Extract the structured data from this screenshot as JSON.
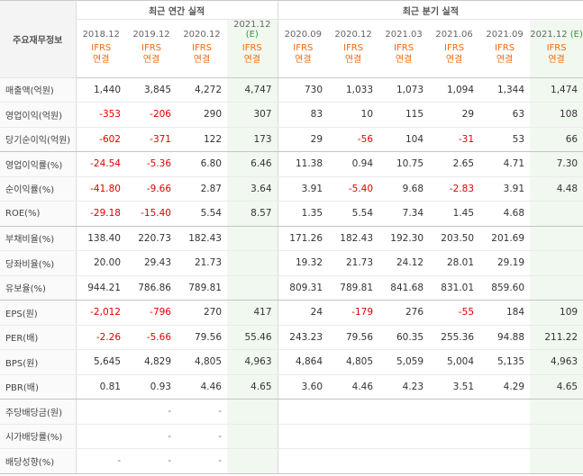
{
  "header": {
    "corner_label": "주요재무정보",
    "annual_group": "최근 연간 실적",
    "quarter_group": "최근 분기 실적",
    "periods": [
      {
        "label": "2018.12",
        "est": false
      },
      {
        "label": "2019.12",
        "est": false
      },
      {
        "label": "2020.12",
        "est": false
      },
      {
        "label": "2021.12",
        "est": true
      },
      {
        "label": "2020.09",
        "est": false
      },
      {
        "label": "2020.12",
        "est": false
      },
      {
        "label": "2021.03",
        "est": false
      },
      {
        "label": "2021.06",
        "est": false
      },
      {
        "label": "2021.09",
        "est": false
      },
      {
        "label": "2021.12",
        "est": true
      }
    ],
    "est_badge": "(E)",
    "ifrs_label": "IFRS",
    "consol_label": "연결"
  },
  "rows": [
    {
      "label": "매출액(억원)",
      "values": [
        "1,440",
        "3,845",
        "4,272",
        "4,747",
        "730",
        "1,033",
        "1,073",
        "1,094",
        "1,344",
        "1,474"
      ]
    },
    {
      "label": "영업이익(억원)",
      "values": [
        "-353",
        "-206",
        "290",
        "307",
        "83",
        "10",
        "115",
        "29",
        "63",
        "108"
      ]
    },
    {
      "label": "당기순이익(억원)",
      "values": [
        "-602",
        "-371",
        "122",
        "173",
        "29",
        "-56",
        "104",
        "-31",
        "53",
        "66"
      ],
      "group_end": true
    },
    {
      "label": "영업이익률(%)",
      "values": [
        "-24.54",
        "-5.36",
        "6.80",
        "6.46",
        "11.38",
        "0.94",
        "10.75",
        "2.65",
        "4.71",
        "7.30"
      ]
    },
    {
      "label": "순이익률(%)",
      "values": [
        "-41.80",
        "-9.66",
        "2.87",
        "3.64",
        "3.91",
        "-5.40",
        "9.68",
        "-2.83",
        "3.91",
        "4.48"
      ]
    },
    {
      "label": "ROE(%)",
      "values": [
        "-29.18",
        "-15.40",
        "5.54",
        "8.57",
        "1.35",
        "5.54",
        "7.34",
        "1.45",
        "4.68",
        ""
      ],
      "group_end": true
    },
    {
      "label": "부채비율(%)",
      "values": [
        "138.40",
        "220.73",
        "182.43",
        "",
        "171.26",
        "182.43",
        "192.30",
        "203.50",
        "201.69",
        ""
      ]
    },
    {
      "label": "당좌비율(%)",
      "values": [
        "20.00",
        "29.43",
        "21.73",
        "",
        "19.32",
        "21.73",
        "24.12",
        "28.01",
        "29.19",
        ""
      ]
    },
    {
      "label": "유보율(%)",
      "values": [
        "944.21",
        "786.86",
        "789.81",
        "",
        "809.31",
        "789.81",
        "841.68",
        "831.01",
        "859.60",
        ""
      ],
      "group_end": true
    },
    {
      "label": "EPS(원)",
      "values": [
        "-2,012",
        "-796",
        "270",
        "417",
        "24",
        "-179",
        "276",
        "-55",
        "184",
        "109"
      ]
    },
    {
      "label": "PER(배)",
      "values": [
        "-2.26",
        "-5.66",
        "79.56",
        "55.46",
        "243.23",
        "79.56",
        "60.35",
        "255.36",
        "94.88",
        "211.22"
      ]
    },
    {
      "label": "BPS(원)",
      "values": [
        "5,645",
        "4,829",
        "4,805",
        "4,963",
        "4,864",
        "4,805",
        "5,059",
        "5,004",
        "5,135",
        "4,963"
      ]
    },
    {
      "label": "PBR(배)",
      "values": [
        "0.81",
        "0.93",
        "4.46",
        "4.65",
        "3.60",
        "4.46",
        "4.23",
        "3.51",
        "4.29",
        "4.65"
      ],
      "group_end": true
    },
    {
      "label": "주당배당금(원)",
      "values": [
        "",
        "-",
        "-",
        "",
        "",
        "",
        "",
        "",
        "",
        ""
      ]
    },
    {
      "label": "시가배당률(%)",
      "values": [
        "",
        "-",
        "-",
        "",
        "",
        "",
        "",
        "",
        "",
        ""
      ]
    },
    {
      "label": "배당성향(%)",
      "values": [
        "-",
        "-",
        "-",
        "",
        "",
        "",
        "",
        "",
        "",
        ""
      ],
      "group_end": true
    }
  ]
}
